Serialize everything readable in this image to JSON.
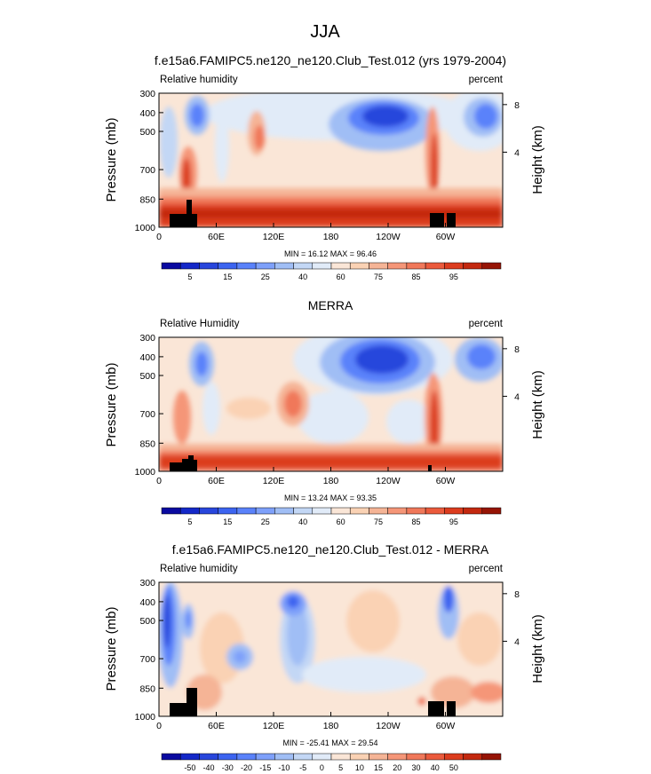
{
  "figure": {
    "title": "JJA"
  },
  "colorbar_full": {
    "colors": [
      "#0a0aa0",
      "#1428c8",
      "#2846dc",
      "#3c64f0",
      "#5a82fa",
      "#7ea0fa",
      "#a0bef5",
      "#c3d7f5",
      "#e1ebf8",
      "#fae6d7",
      "#fad2b4",
      "#f5b496",
      "#f59678",
      "#f0785a",
      "#eb5a3c",
      "#dc3c1e",
      "#c3280f",
      "#961405"
    ],
    "labels": [
      "5",
      "15",
      "25",
      "40",
      "60",
      "75",
      "85",
      "95"
    ]
  },
  "colorbar_diff": {
    "colors": [
      "#0a0aa0",
      "#1428c8",
      "#2846dc",
      "#3c64f0",
      "#5a82fa",
      "#7ea0fa",
      "#a0bef5",
      "#c3d7f5",
      "#e1ebf8",
      "#fae6d7",
      "#fad2b4",
      "#f5b496",
      "#f59678",
      "#f0785a",
      "#eb5a3c",
      "#dc3c1e",
      "#c3280f",
      "#961405"
    ],
    "labels": [
      "-50",
      "-40",
      "-30",
      "-20",
      "-15",
      "-10",
      "-5",
      "0",
      "5",
      "10",
      "15",
      "20",
      "30",
      "40",
      "50"
    ]
  },
  "chart_data": [
    {
      "type": "heatmap",
      "title": "f.e15a6.FAMIPC5.ne120_ne120.Club_Test.012 (yrs 1979-2004)",
      "left_label": "Relative humidity",
      "right_label": "percent",
      "ylabel": "Pressure (mb)",
      "y2label": "Height (km)",
      "yticks": [
        "300",
        "400",
        "500",
        "700",
        "850",
        "1000"
      ],
      "xticks": [
        "0",
        "60E",
        "120E",
        "180",
        "120W",
        "60W"
      ],
      "y2ticks": [
        "8",
        "4"
      ],
      "stats": "MIN =  16.12  MAX =  96.46",
      "min": 16.12,
      "max": 96.46
    },
    {
      "type": "heatmap",
      "title": "MERRA",
      "left_label": "Relative Humidity",
      "right_label": "percent",
      "ylabel": "Pressure (mb)",
      "y2label": "Height (km)",
      "yticks": [
        "300",
        "400",
        "500",
        "700",
        "850",
        "1000"
      ],
      "xticks": [
        "0",
        "60E",
        "120E",
        "180",
        "120W",
        "60W"
      ],
      "y2ticks": [
        "8",
        "4"
      ],
      "stats": "MIN =  13.24  MAX =  93.35",
      "min": 13.24,
      "max": 93.35
    },
    {
      "type": "heatmap",
      "title": "f.e15a6.FAMIPC5.ne120_ne120.Club_Test.012 - MERRA",
      "left_label": "Relative humidity",
      "right_label": "percent",
      "ylabel": "Pressure (mb)",
      "y2label": "Height (km)",
      "yticks": [
        "300",
        "400",
        "500",
        "700",
        "850",
        "1000"
      ],
      "xticks": [
        "0",
        "60E",
        "120E",
        "180",
        "120W",
        "60W"
      ],
      "y2ticks": [
        "8",
        "4"
      ],
      "stats": "MIN = -25.41  MAX =  29.54",
      "min": -25.41,
      "max": 29.54
    }
  ]
}
